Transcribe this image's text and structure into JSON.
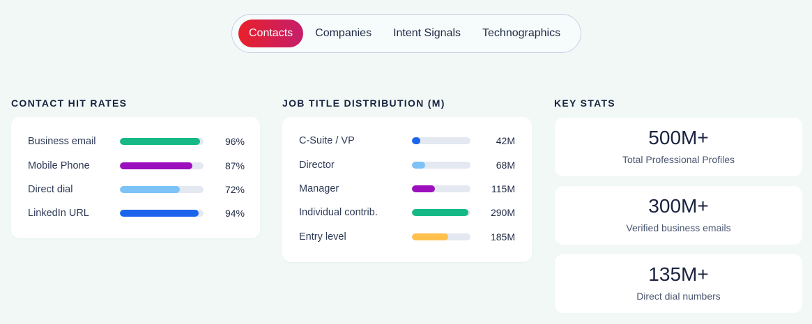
{
  "tabs": [
    {
      "label": "Contacts",
      "active": true
    },
    {
      "label": "Companies",
      "active": false
    },
    {
      "label": "Intent Signals",
      "active": false
    },
    {
      "label": "Technographics",
      "active": false
    }
  ],
  "hit_rates": {
    "title": "CONTACT HIT RATES",
    "rows": [
      {
        "label": "Business email",
        "value": "96%",
        "percent": 96,
        "color": "#16b985"
      },
      {
        "label": "Mobile Phone",
        "value": "87%",
        "percent": 87,
        "color": "#9c0fbd"
      },
      {
        "label": "Direct dial",
        "value": "72%",
        "percent": 72,
        "color": "#7dc2f7"
      },
      {
        "label": "LinkedIn URL",
        "value": "94%",
        "percent": 94,
        "color": "#1a64ee"
      }
    ]
  },
  "job_titles": {
    "title": "JOB TITLE DISTRIBUTION (M)",
    "rows": [
      {
        "label": "C-Suite / VP",
        "value": "42M",
        "percent": 14,
        "color": "#1a64ee"
      },
      {
        "label": "Director",
        "value": "68M",
        "percent": 23,
        "color": "#7dc2f7"
      },
      {
        "label": "Manager",
        "value": "115M",
        "percent": 39,
        "color": "#9c0fbd"
      },
      {
        "label": "Individual contrib.",
        "value": "290M",
        "percent": 97,
        "color": "#16b985"
      },
      {
        "label": "Entry level",
        "value": "185M",
        "percent": 62,
        "color": "#ffc04d"
      }
    ]
  },
  "key_stats": {
    "title": "KEY STATS",
    "items": [
      {
        "value": "500M+",
        "label": "Total Professional Profiles"
      },
      {
        "value": "300M+",
        "label": "Verified business emails"
      },
      {
        "value": "135M+",
        "label": "Direct dial numbers"
      }
    ]
  }
}
